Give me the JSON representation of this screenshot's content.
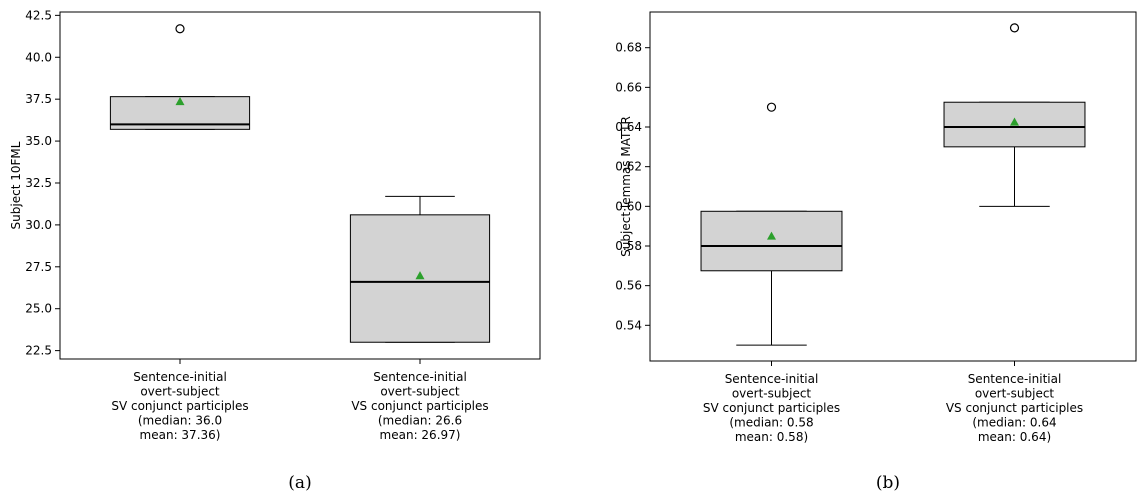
{
  "panels": [
    {
      "caption": "(a)",
      "chart_data": {
        "type": "box",
        "title": "",
        "xlabel": "",
        "ylabel": "Subject 10FML",
        "ylim": [
          22.0,
          42.7
        ],
        "yticks": [
          22.5,
          25.0,
          27.5,
          30.0,
          32.5,
          35.0,
          37.5,
          40.0,
          42.5
        ],
        "ytick_labels": [
          "22.5",
          "25.0",
          "27.5",
          "30.0",
          "32.5",
          "35.0",
          "37.5",
          "40.0",
          "42.5"
        ],
        "grid": false,
        "categories": [
          [
            "Sentence-initial",
            "overt-subject",
            "SV conjunct participles",
            "(median: 36.0",
            "mean: 37.36)"
          ],
          [
            "Sentence-initial",
            "overt-subject",
            "VS conjunct participles",
            "(median: 26.6",
            "mean: 26.97)"
          ]
        ],
        "boxes": [
          {
            "whislo": 35.7,
            "q1": 35.7,
            "median": 36.0,
            "q3": 37.65,
            "whishi": 37.65,
            "mean": 37.36,
            "fliers": [
              41.7
            ]
          },
          {
            "whislo": 23.0,
            "q1": 23.0,
            "median": 26.6,
            "q3": 30.6,
            "whishi": 31.7,
            "mean": 26.97,
            "fliers": []
          }
        ]
      }
    },
    {
      "caption": "(b)",
      "chart_data": {
        "type": "box",
        "title": "",
        "xlabel": "",
        "ylabel": "Subject lemmas MATTR",
        "ylim": [
          0.522,
          0.698
        ],
        "yticks": [
          0.54,
          0.56,
          0.58,
          0.6,
          0.62,
          0.64,
          0.66,
          0.68
        ],
        "ytick_labels": [
          "0.54",
          "0.56",
          "0.58",
          "0.60",
          "0.62",
          "0.64",
          "0.66",
          "0.68"
        ],
        "grid": false,
        "categories": [
          [
            "Sentence-initial",
            "overt-subject",
            "SV conjunct participles",
            "(median: 0.58",
            "mean: 0.58)"
          ],
          [
            "Sentence-initial",
            "overt-subject",
            "VS conjunct participles",
            "(median: 0.64",
            "mean: 0.64)"
          ]
        ],
        "boxes": [
          {
            "whislo": 0.53,
            "q1": 0.5675,
            "median": 0.58,
            "q3": 0.5975,
            "whishi": 0.5975,
            "mean": 0.585,
            "fliers": [
              0.65
            ]
          },
          {
            "whislo": 0.6,
            "q1": 0.63,
            "median": 0.64,
            "q3": 0.6525,
            "whishi": 0.6525,
            "mean": 0.6425,
            "fliers": [
              0.69
            ]
          }
        ]
      }
    }
  ],
  "colors": {
    "box_fill": "#d3d3d3",
    "mean_marker": "#2ca02c",
    "line": "#000000",
    "axes": "#000000"
  }
}
